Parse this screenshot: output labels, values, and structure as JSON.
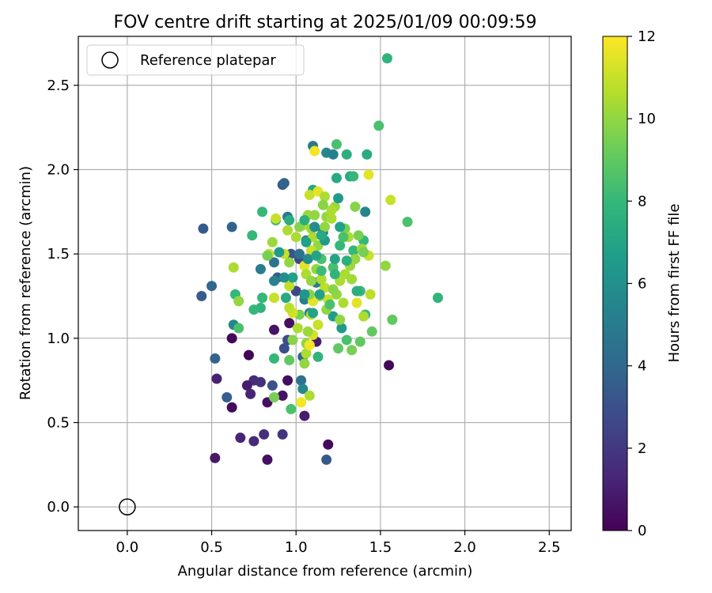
{
  "chart_data": {
    "type": "scatter",
    "title": "FOV centre drift starting at 2025/01/09 00:09:59",
    "xlabel": "Angular distance from reference (arcmin)",
    "ylabel": "Rotation from reference (arcmin)",
    "xlim": [
      -0.29,
      2.63
    ],
    "ylim": [
      -0.14,
      2.79
    ],
    "x_ticks": [
      0.0,
      0.5,
      1.0,
      1.5,
      2.0,
      2.5
    ],
    "x_tick_labels": [
      "0.0",
      "0.5",
      "1.0",
      "1.5",
      "2.0",
      "2.5"
    ],
    "y_ticks": [
      0.0,
      0.5,
      1.0,
      1.5,
      2.0,
      2.5
    ],
    "y_tick_labels": [
      "0.0",
      "0.5",
      "1.0",
      "1.5",
      "2.0",
      "2.5"
    ],
    "grid": true,
    "legend": {
      "placement": "upper-left",
      "entries": [
        {
          "label": "Reference platepar",
          "marker": "open-circle"
        }
      ]
    },
    "reference_point": {
      "x": 0.0,
      "y": 0.0
    },
    "colorbar": {
      "label": "Hours from first FF file",
      "colormap": "viridis",
      "range": [
        0,
        12
      ],
      "ticks": [
        0,
        2,
        4,
        6,
        8,
        10,
        12
      ],
      "tick_labels": [
        "0",
        "2",
        "4",
        "6",
        "8",
        "10",
        "12"
      ]
    },
    "colormap_stops": [
      "#440154",
      "#482878",
      "#3e4989",
      "#31688e",
      "#26828e",
      "#1f9e89",
      "#35b779",
      "#6ece58",
      "#b5de2b",
      "#fde725"
    ],
    "points": [
      [
        0.62,
        0.59,
        0.3
      ],
      [
        0.52,
        0.29,
        0.8
      ],
      [
        0.67,
        0.41,
        1.2
      ],
      [
        0.75,
        0.39,
        1.4
      ],
      [
        0.81,
        0.43,
        1.6
      ],
      [
        0.83,
        0.28,
        0.5
      ],
      [
        0.92,
        0.43,
        1.8
      ],
      [
        0.92,
        0.66,
        0.6
      ],
      [
        0.95,
        0.75,
        0.4
      ],
      [
        0.75,
        0.75,
        1.5
      ],
      [
        0.71,
        0.72,
        1.0
      ],
      [
        0.73,
        0.67,
        1.2
      ],
      [
        0.79,
        0.74,
        1.6
      ],
      [
        0.83,
        0.62,
        0.5
      ],
      [
        0.53,
        0.76,
        1.1
      ],
      [
        0.62,
        1.0,
        0.2
      ],
      [
        0.72,
        0.9,
        0.1
      ],
      [
        0.87,
        1.05,
        0.6
      ],
      [
        0.96,
        1.09,
        0.5
      ],
      [
        1.05,
        0.54,
        1.0
      ],
      [
        1.19,
        0.37,
        0.3
      ],
      [
        1.55,
        0.84,
        0.2
      ],
      [
        1.18,
        0.28,
        3.4
      ],
      [
        0.59,
        0.65,
        3.6
      ],
      [
        0.52,
        0.88,
        3.8
      ],
      [
        0.45,
        1.65,
        3.4
      ],
      [
        0.44,
        1.25,
        3.5
      ],
      [
        0.5,
        1.31,
        4.0
      ],
      [
        0.62,
        1.66,
        3.8
      ],
      [
        0.86,
        0.72,
        3.0
      ],
      [
        0.92,
        1.91,
        3.4
      ],
      [
        0.93,
        1.92,
        3.8
      ],
      [
        0.95,
        0.99,
        2.8
      ],
      [
        0.93,
        0.94,
        2.9
      ],
      [
        1.04,
        0.89,
        4.0
      ],
      [
        1.03,
        0.75,
        4.5
      ],
      [
        1.04,
        0.7,
        5.5
      ],
      [
        1.12,
        0.98,
        0.9
      ],
      [
        1.0,
        1.28,
        2.6
      ],
      [
        1.02,
        1.47,
        2.5
      ],
      [
        0.97,
        1.5,
        3.2
      ],
      [
        0.89,
        1.36,
        3.5
      ],
      [
        0.87,
        1.45,
        4.5
      ],
      [
        0.79,
        1.41,
        5.0
      ],
      [
        0.63,
        1.08,
        5.5
      ],
      [
        0.95,
        1.72,
        4.8
      ],
      [
        1.1,
        2.14,
        4.8
      ],
      [
        1.18,
        2.1,
        5.5
      ],
      [
        1.22,
        2.09,
        5.2
      ],
      [
        1.3,
        2.09,
        7.5
      ],
      [
        1.42,
        2.09,
        7.3
      ],
      [
        1.24,
        1.95,
        7.3
      ],
      [
        1.32,
        1.96,
        7.2
      ],
      [
        1.41,
        1.75,
        5.5
      ],
      [
        1.16,
        1.63,
        5.2
      ],
      [
        1.06,
        1.58,
        5.0
      ],
      [
        1.02,
        1.5,
        4.5
      ],
      [
        1.12,
        1.33,
        5.0
      ],
      [
        1.05,
        1.23,
        5.2
      ],
      [
        1.08,
        1.15,
        5.5
      ],
      [
        1.22,
        1.13,
        6.5
      ],
      [
        1.27,
        1.06,
        6.5
      ],
      [
        1.13,
        0.89,
        7.8
      ],
      [
        0.87,
        1.34,
        5.4
      ],
      [
        0.79,
        1.18,
        7.8
      ],
      [
        0.94,
        1.24,
        7.2
      ],
      [
        1.54,
        2.66,
        7.8
      ],
      [
        1.49,
        2.26,
        8.5
      ],
      [
        1.84,
        1.24,
        7.8
      ],
      [
        1.66,
        1.69,
        8.5
      ],
      [
        1.24,
        2.15,
        8.5
      ],
      [
        1.34,
        1.96,
        8.0
      ],
      [
        0.74,
        1.61,
        8.0
      ],
      [
        0.8,
        1.75,
        8.0
      ],
      [
        0.88,
        1.7,
        8.0
      ],
      [
        0.96,
        1.7,
        7.5
      ],
      [
        1.1,
        1.88,
        7.2
      ],
      [
        0.64,
        1.26,
        8.0
      ],
      [
        0.66,
        1.06,
        8.5
      ],
      [
        0.75,
        1.17,
        8.0
      ],
      [
        0.8,
        1.24,
        8.0
      ],
      [
        0.87,
        0.88,
        8.0
      ],
      [
        0.96,
        0.87,
        9.0
      ],
      [
        0.97,
        0.58,
        8.5
      ],
      [
        0.87,
        0.65,
        9.5
      ],
      [
        1.3,
        0.99,
        8.5
      ],
      [
        1.41,
        1.14,
        8.0
      ],
      [
        1.45,
        1.04,
        9.0
      ],
      [
        1.38,
        0.98,
        9.0
      ],
      [
        1.33,
        0.93,
        9.5
      ],
      [
        1.25,
        0.94,
        9.0
      ],
      [
        1.34,
        1.52,
        8.0
      ],
      [
        1.4,
        1.58,
        8.0
      ],
      [
        1.38,
        1.28,
        8.0
      ],
      [
        1.22,
        1.42,
        8.5
      ],
      [
        1.26,
        1.55,
        8.0
      ],
      [
        1.15,
        1.47,
        8.5
      ],
      [
        1.57,
        1.11,
        9.0
      ],
      [
        1.53,
        1.43,
        10.0
      ],
      [
        1.56,
        1.82,
        11.0
      ],
      [
        1.43,
        1.97,
        11.5
      ],
      [
        1.11,
        2.11,
        11.8
      ],
      [
        1.08,
        1.85,
        11.0
      ],
      [
        1.13,
        1.87,
        11.5
      ],
      [
        1.17,
        1.84,
        10.5
      ],
      [
        1.18,
        1.72,
        10.0
      ],
      [
        1.16,
        1.79,
        9.8
      ],
      [
        1.21,
        1.71,
        10.5
      ],
      [
        1.23,
        1.78,
        10.2
      ],
      [
        1.35,
        1.78,
        9.8
      ],
      [
        1.29,
        1.65,
        9.5
      ],
      [
        1.31,
        1.6,
        10.5
      ],
      [
        1.37,
        1.61,
        9.5
      ],
      [
        1.39,
        1.53,
        10.2
      ],
      [
        1.43,
        1.49,
        11.0
      ],
      [
        1.4,
        1.51,
        9.5
      ],
      [
        1.35,
        1.47,
        10.0
      ],
      [
        1.32,
        1.43,
        10.2
      ],
      [
        1.29,
        1.38,
        10.5
      ],
      [
        1.26,
        1.34,
        10.5
      ],
      [
        1.33,
        1.35,
        10.3
      ],
      [
        1.44,
        1.26,
        10.8
      ],
      [
        1.4,
        1.13,
        10.5
      ],
      [
        1.36,
        1.21,
        11.5
      ],
      [
        1.28,
        1.21,
        10.5
      ],
      [
        1.24,
        1.26,
        10.0
      ],
      [
        1.26,
        1.11,
        10.0
      ],
      [
        1.19,
        1.23,
        11.0
      ],
      [
        1.14,
        1.25,
        9.8
      ],
      [
        1.1,
        1.22,
        11.5
      ],
      [
        1.09,
        1.14,
        10.8
      ],
      [
        1.13,
        1.08,
        11.0
      ],
      [
        1.1,
        1.02,
        11.2
      ],
      [
        1.06,
        0.97,
        10.0
      ],
      [
        1.07,
        1.04,
        10.2
      ],
      [
        1.02,
        1.14,
        9.5
      ],
      [
        0.98,
        1.15,
        11.2
      ],
      [
        0.96,
        1.18,
        10.8
      ],
      [
        0.96,
        1.31,
        10.8
      ],
      [
        0.96,
        1.45,
        10.0
      ],
      [
        0.93,
        1.5,
        11.0
      ],
      [
        0.86,
        1.57,
        10.2
      ],
      [
        0.84,
        1.5,
        11.0
      ],
      [
        0.87,
        1.24,
        11.0
      ],
      [
        0.88,
        1.71,
        11.0
      ],
      [
        0.95,
        1.64,
        10.5
      ],
      [
        1.0,
        1.6,
        10.5
      ],
      [
        1.04,
        1.67,
        10.5
      ],
      [
        1.07,
        1.73,
        10.2
      ],
      [
        1.11,
        1.73,
        10.0
      ],
      [
        1.1,
        1.6,
        10.5
      ],
      [
        1.13,
        1.55,
        10.0
      ],
      [
        1.09,
        1.52,
        11.0
      ],
      [
        1.05,
        1.43,
        11.5
      ],
      [
        1.06,
        1.38,
        10.5
      ],
      [
        1.09,
        1.34,
        10.0
      ],
      [
        1.12,
        1.41,
        10.0
      ],
      [
        1.15,
        1.35,
        10.5
      ],
      [
        1.17,
        1.3,
        10.8
      ],
      [
        1.22,
        1.29,
        9.8
      ],
      [
        1.18,
        1.17,
        10.0
      ],
      [
        1.08,
        1.26,
        9.8
      ],
      [
        1.01,
        1.06,
        10.5
      ],
      [
        0.98,
        0.99,
        9.8
      ],
      [
        1.05,
        0.85,
        10.0
      ],
      [
        1.06,
        0.91,
        10.5
      ],
      [
        1.08,
        0.96,
        11.8
      ],
      [
        1.08,
        0.66,
        10.5
      ],
      [
        1.03,
        0.62,
        11.8
      ],
      [
        0.66,
        1.22,
        10.0
      ],
      [
        0.63,
        1.42,
        10.5
      ],
      [
        0.83,
        1.49,
        9.5
      ],
      [
        1.02,
        1.66,
        9.8
      ],
      [
        1.09,
        1.65,
        10.2
      ],
      [
        1.17,
        1.66,
        10.0
      ],
      [
        1.21,
        1.76,
        10.5
      ],
      [
        1.28,
        1.6,
        8.5
      ],
      [
        1.17,
        1.58,
        6.5
      ],
      [
        1.07,
        1.47,
        5.8
      ],
      [
        1.11,
        1.66,
        5.8
      ],
      [
        1.25,
        1.83,
        6.5
      ],
      [
        1.15,
        1.61,
        7.2
      ],
      [
        1.23,
        1.47,
        7.0
      ],
      [
        1.3,
        1.46,
        7.5
      ],
      [
        1.23,
        1.38,
        7.8
      ],
      [
        1.14,
        1.26,
        6.8
      ],
      [
        1.1,
        1.15,
        7.0
      ],
      [
        1.05,
        1.26,
        6.3
      ],
      [
        0.98,
        1.36,
        6.8
      ],
      [
        0.9,
        1.51,
        6.5
      ],
      [
        0.93,
        1.36,
        6.0
      ],
      [
        1.05,
        1.7,
        7.5
      ],
      [
        1.26,
        1.66,
        6.8
      ],
      [
        1.36,
        1.28,
        7.5
      ],
      [
        1.12,
        1.49,
        7.0
      ],
      [
        1.06,
        1.57,
        6.8
      ],
      [
        1.15,
        1.4,
        8.2
      ],
      [
        1.2,
        1.2,
        8.5
      ]
    ]
  }
}
